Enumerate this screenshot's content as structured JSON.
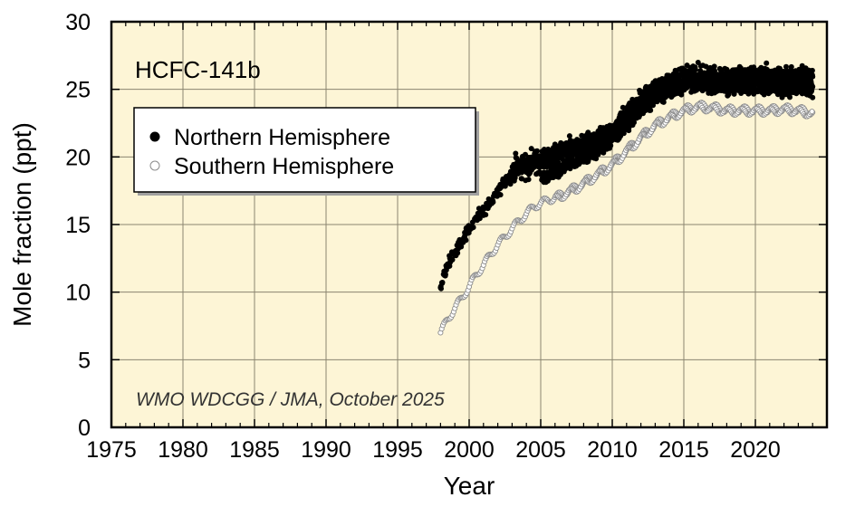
{
  "chart_data": {
    "type": "scatter",
    "title": "HCFC-141b",
    "xlabel": "Year",
    "ylabel": "Mole fraction (ppt)",
    "xlim": [
      1975,
      2025
    ],
    "ylim": [
      0,
      30
    ],
    "x_ticks": [
      "1975",
      "1980",
      "1985",
      "1990",
      "1995",
      "2000",
      "2005",
      "2010",
      "2015",
      "2020"
    ],
    "x_tick_values": [
      1975,
      1980,
      1985,
      1990,
      1995,
      2000,
      2005,
      2010,
      2015,
      2020
    ],
    "y_ticks": [
      "0",
      "5",
      "10",
      "15",
      "20",
      "25",
      "30"
    ],
    "y_tick_values": [
      0,
      5,
      10,
      15,
      20,
      25,
      30
    ],
    "grid": true,
    "legend_position": "upper-left",
    "annotation": "WMO WDCGG / JMA, October 2025",
    "colors": {
      "plot_background": "#fdf5d6",
      "grid": "#8a8570",
      "northern": "#000000",
      "southern_stroke": "#8c8c8c",
      "southern_fill": "#ffffff"
    },
    "series": [
      {
        "name": "Northern Hemisphere",
        "marker": "filled-circle",
        "trend": [
          [
            1998.0,
            10.1
          ],
          [
            1998.3,
            11.6
          ],
          [
            1998.8,
            12.6
          ],
          [
            1999.3,
            13.4
          ],
          [
            1999.8,
            14.3
          ],
          [
            2000.3,
            15.2
          ],
          [
            2001.0,
            16.0
          ],
          [
            2001.8,
            17.0
          ],
          [
            2002.5,
            18.2
          ],
          [
            2003.2,
            19.1
          ],
          [
            2004.0,
            19.4
          ],
          [
            2005.0,
            19.7
          ],
          [
            2006.0,
            20.1
          ],
          [
            2007.0,
            20.5
          ],
          [
            2008.0,
            20.8
          ],
          [
            2009.0,
            21.2
          ],
          [
            2010.0,
            21.9
          ],
          [
            2011.0,
            23.0
          ],
          [
            2012.0,
            24.2
          ],
          [
            2013.0,
            25.0
          ],
          [
            2014.0,
            25.5
          ],
          [
            2015.0,
            25.8
          ],
          [
            2016.0,
            25.9
          ],
          [
            2017.0,
            25.8
          ],
          [
            2018.0,
            25.7
          ],
          [
            2019.0,
            25.9
          ],
          [
            2020.0,
            26.0
          ],
          [
            2021.0,
            25.9
          ],
          [
            2022.0,
            25.8
          ],
          [
            2023.0,
            25.8
          ],
          [
            2024.0,
            25.7
          ]
        ],
        "lower_band": [
          [
            2005.0,
            18.3
          ],
          [
            2006.0,
            18.9
          ],
          [
            2007.0,
            19.5
          ],
          [
            2008.0,
            20.0
          ],
          [
            2009.0,
            20.5
          ],
          [
            2010.0,
            21.2
          ],
          [
            2011.0,
            22.3
          ],
          [
            2012.0,
            23.5
          ],
          [
            2013.0,
            24.3
          ],
          [
            2014.0,
            24.9
          ],
          [
            2015.0,
            25.2
          ],
          [
            2016.0,
            25.3
          ],
          [
            2018.0,
            25.1
          ],
          [
            2020.0,
            25.2
          ],
          [
            2022.0,
            25.0
          ],
          [
            2024.0,
            24.9
          ]
        ],
        "scatter_ppt": 0.55
      },
      {
        "name": "Southern Hemisphere",
        "marker": "open-circle",
        "trend": [
          [
            1998.0,
            7.0
          ],
          [
            1998.5,
            8.0
          ],
          [
            1999.0,
            8.8
          ],
          [
            1999.5,
            9.6
          ],
          [
            2000.0,
            10.4
          ],
          [
            2000.5,
            11.3
          ],
          [
            2001.0,
            12.0
          ],
          [
            2001.5,
            12.8
          ],
          [
            2002.0,
            13.5
          ],
          [
            2002.5,
            14.1
          ],
          [
            2003.0,
            14.7
          ],
          [
            2003.5,
            15.3
          ],
          [
            2004.0,
            15.8
          ],
          [
            2004.5,
            16.3
          ],
          [
            2005.0,
            16.6
          ],
          [
            2006.0,
            17.0
          ],
          [
            2007.0,
            17.5
          ],
          [
            2008.0,
            18.1
          ],
          [
            2009.0,
            18.8
          ],
          [
            2010.0,
            19.5
          ],
          [
            2011.0,
            20.5
          ],
          [
            2012.0,
            21.5
          ],
          [
            2013.0,
            22.4
          ],
          [
            2014.0,
            23.0
          ],
          [
            2015.0,
            23.5
          ],
          [
            2016.0,
            23.8
          ],
          [
            2017.0,
            23.7
          ],
          [
            2018.0,
            23.5
          ],
          [
            2019.0,
            23.5
          ],
          [
            2020.0,
            23.5
          ],
          [
            2021.0,
            23.5
          ],
          [
            2022.0,
            23.6
          ],
          [
            2023.0,
            23.5
          ],
          [
            2024.0,
            23.3
          ]
        ],
        "seasonal_amplitude_ppt": 0.25
      }
    ]
  }
}
